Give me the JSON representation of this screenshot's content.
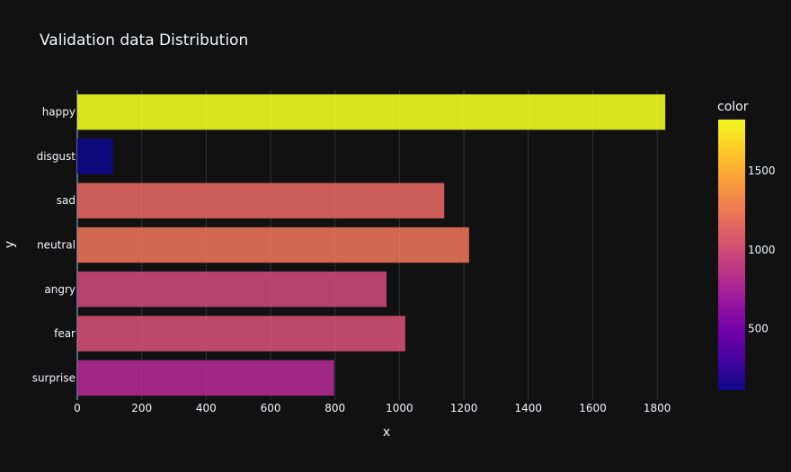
{
  "chart_data": {
    "type": "bar",
    "orientation": "horizontal",
    "title": "Validation data Distribution",
    "xlabel": "x",
    "ylabel": "y",
    "categories": [
      "happy",
      "disgust",
      "sad",
      "neutral",
      "angry",
      "fear",
      "surprise"
    ],
    "values": [
      1825,
      111,
      1139,
      1216,
      960,
      1018,
      797
    ],
    "xlim": [
      0,
      1900
    ],
    "xticks": [
      0,
      200,
      400,
      600,
      800,
      1000,
      1200,
      1400,
      1600,
      1800
    ],
    "grid": true,
    "colorbar": {
      "title": "color",
      "range": [
        111,
        1825
      ],
      "ticks": [
        500,
        1000,
        1500
      ],
      "colorscale": [
        "#0d0887",
        "#46039f",
        "#7201a8",
        "#9c179e",
        "#bd3786",
        "#d8576b",
        "#ed7953",
        "#fb9f3a",
        "#fdca26",
        "#f0f921"
      ]
    },
    "background": "#111111",
    "gridcolor": "#283442",
    "textcolor": "#f2f5fa"
  }
}
